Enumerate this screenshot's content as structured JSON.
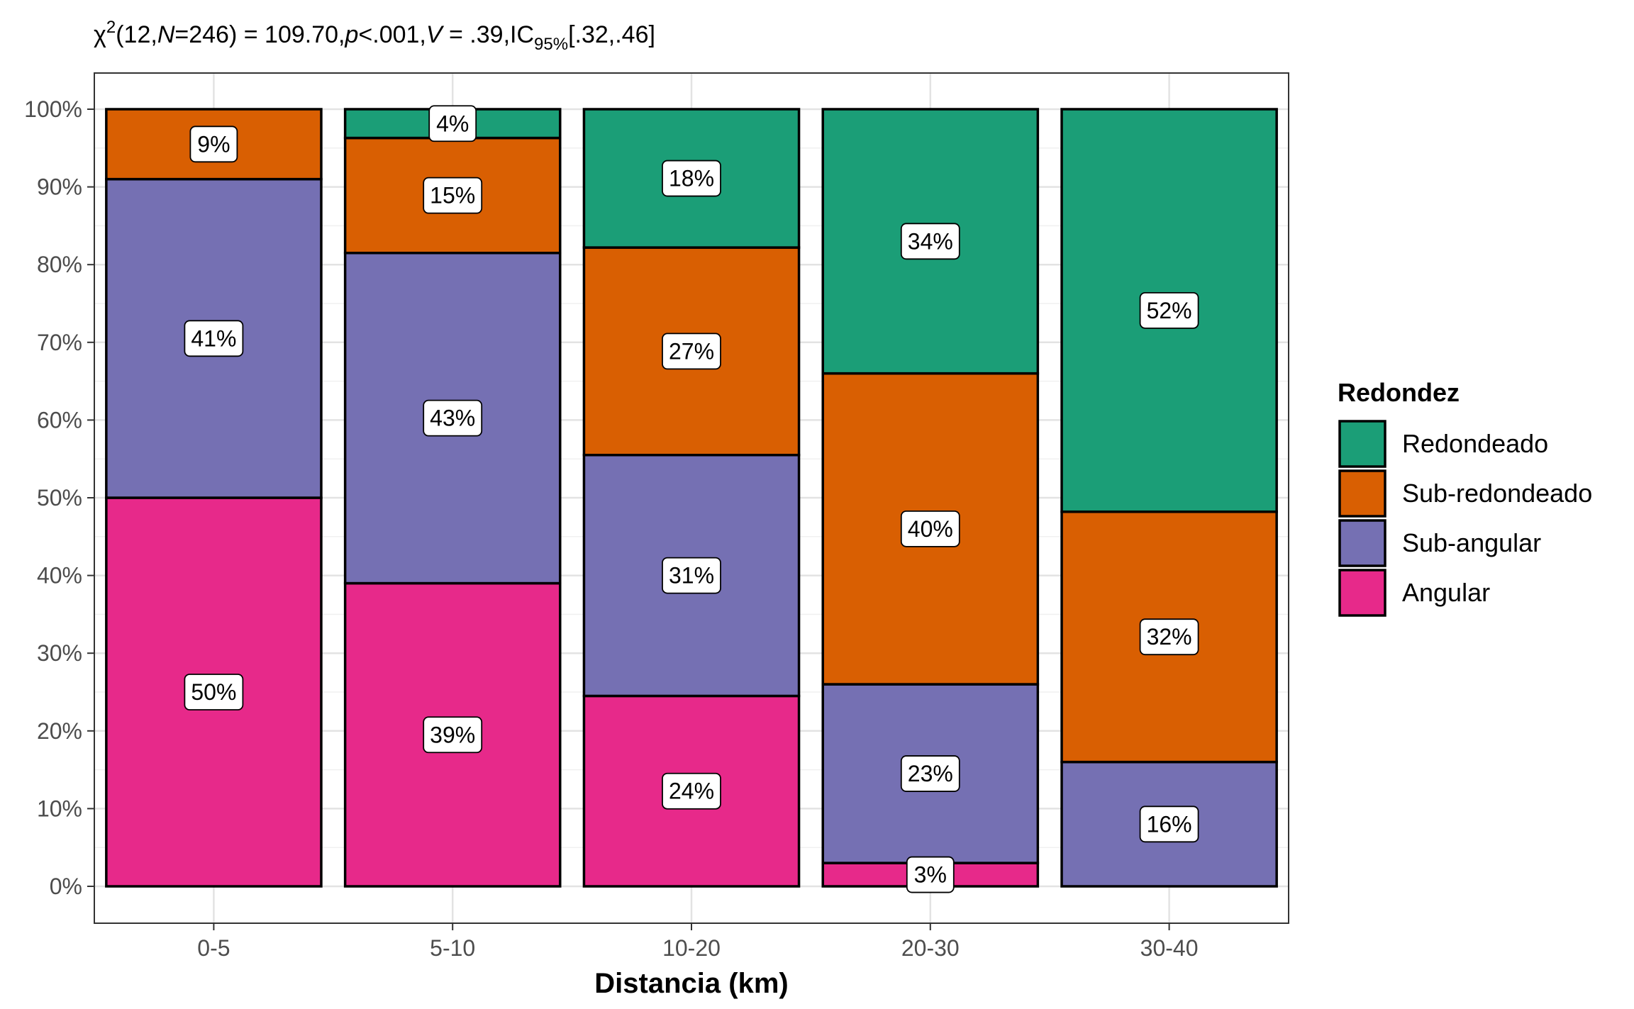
{
  "subtitle": {
    "chi": "χ",
    "sq": "2",
    "open": "(12,",
    "n_sym": "N",
    "n_val": "=246) = 109.70,",
    "p_sym": "p",
    "p_val": "<.001,",
    "v_sym": "V",
    "v_val": " = .39,IC",
    "ci_sub": "95%",
    "ci_val": "[.32,.46]"
  },
  "colors": {
    "Redondeado": "#1B9E77",
    "Sub-redondeado": "#D95F02",
    "Sub-angular": "#7570B3",
    "Angular": "#E7298A"
  },
  "chart_data": {
    "type": "bar",
    "stacked": true,
    "xlabel": "Distancia (km)",
    "ylabel": "",
    "ylim": [
      0,
      1
    ],
    "yticks": [
      "0%",
      "10%",
      "20%",
      "30%",
      "40%",
      "50%",
      "60%",
      "70%",
      "80%",
      "90%",
      "100%"
    ],
    "categories": [
      "0-5",
      "5-10",
      "10-20",
      "20-30",
      "30-40"
    ],
    "legend": {
      "title": "Redondez",
      "position": "right"
    },
    "series": [
      {
        "name": "Angular",
        "values": [
          0.5,
          0.39,
          0.245,
          0.03,
          0.0
        ],
        "labels": [
          "50%",
          "39%",
          "24%",
          "3%",
          ""
        ]
      },
      {
        "name": "Sub-angular",
        "values": [
          0.41,
          0.425,
          0.31,
          0.23,
          0.16
        ],
        "labels": [
          "41%",
          "43%",
          "31%",
          "23%",
          "16%"
        ]
      },
      {
        "name": "Sub-redondeado",
        "values": [
          0.09,
          0.148,
          0.267,
          0.4,
          0.322
        ],
        "labels": [
          "9%",
          "15%",
          "27%",
          "40%",
          "32%"
        ]
      },
      {
        "name": "Redondeado",
        "values": [
          0.0,
          0.037,
          0.178,
          0.34,
          0.518
        ],
        "labels": [
          "",
          "4%",
          "18%",
          "34%",
          "52%"
        ]
      }
    ],
    "legend_order": [
      "Redondeado",
      "Sub-redondeado",
      "Sub-angular",
      "Angular"
    ],
    "grid": true
  }
}
